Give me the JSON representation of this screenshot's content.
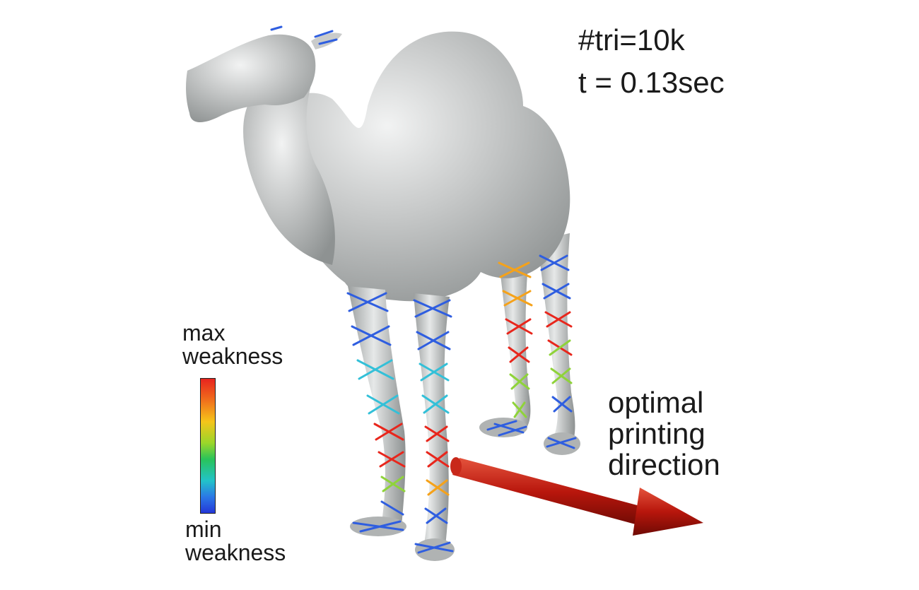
{
  "stats": {
    "triangles": "#tri=10k",
    "time": "t = 0.13sec"
  },
  "legend": {
    "max_line1": "max",
    "max_line2": "weakness",
    "min_line1": "min",
    "min_line2": "weakness",
    "colors": [
      "#e8241e",
      "#f06a1c",
      "#f5c51a",
      "#9ad62a",
      "#29c35a",
      "#22c3c9",
      "#2b78e6",
      "#2437d8"
    ]
  },
  "direction": {
    "line1": "optimal",
    "line2": "printing",
    "line3": "direction",
    "arrow_color": "#b8160c"
  },
  "model": {
    "body_color": "#b9bcbc",
    "stroke_colors": [
      "#2f5ee0",
      "#e8261c",
      "#f5a21a",
      "#8fd33a",
      "#33c0d8"
    ]
  }
}
